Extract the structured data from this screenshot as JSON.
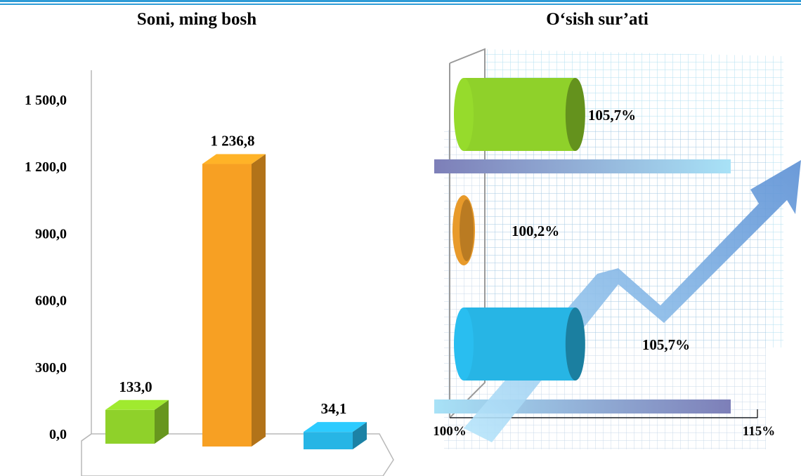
{
  "chart_data": [
    {
      "type": "bar",
      "title": "Soni, ming bosh",
      "categories": [
        "",
        "",
        ""
      ],
      "values": [
        133.0,
        1236.8,
        34.1
      ],
      "value_labels": [
        "133,0",
        "1 236,8",
        "34,1"
      ],
      "colors": [
        "#8fd12a",
        "#f7a023",
        "#27b5e5"
      ],
      "yticks": [
        0,
        300,
        600,
        900,
        1200,
        1500
      ],
      "ytick_labels": [
        "0,0",
        "300,0",
        "600,0",
        "900,0",
        "1 200,0",
        "1 500,0"
      ],
      "ylim": [
        0,
        1500
      ],
      "grid": false,
      "legend": "none"
    },
    {
      "type": "bar",
      "orientation": "horizontal",
      "title": "O‘sish sur’ati",
      "values": [
        105.7,
        100.2,
        105.7
      ],
      "value_labels": [
        "105,7%",
        "100,2%",
        "105,7%"
      ],
      "colors": [
        "#8fd12a",
        "#e89a2a",
        "#27b5e5"
      ],
      "xlim": [
        100,
        115
      ],
      "xtick_labels": [
        "100%",
        "115%"
      ],
      "grid": true,
      "legend": "none"
    }
  ]
}
